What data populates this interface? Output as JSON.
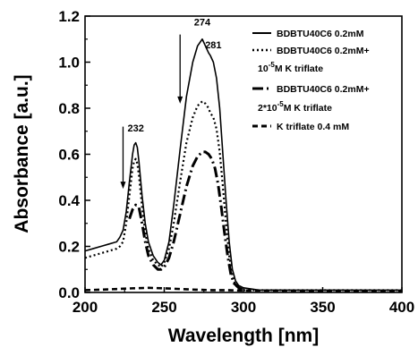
{
  "chart_data": {
    "type": "line",
    "title": "",
    "xlabel": "Wavelength [nm]",
    "ylabel": "Absorbance [a.u.]",
    "xlim": [
      200,
      400
    ],
    "ylim": [
      0.0,
      1.2
    ],
    "x_ticks": [
      "200",
      "250",
      "300",
      "350",
      "400"
    ],
    "y_ticks": [
      "0.0",
      "0.2",
      "0.4",
      "0.6",
      "0.8",
      "1.0",
      "1.2"
    ],
    "grid": false,
    "legend_position": "top-right",
    "annotations": [
      {
        "text": "274",
        "x": 274,
        "y": 1.16
      },
      {
        "text": "281",
        "x": 281,
        "y": 1.06
      },
      {
        "text": "232",
        "x": 232,
        "y": 0.7
      }
    ],
    "arrows": [
      {
        "x": 224,
        "y_from": 0.72,
        "y_to": 0.45
      },
      {
        "x": 260,
        "y_from": 1.12,
        "y_to": 0.82
      }
    ],
    "series": [
      {
        "name": "BDBTU40C6 0.2mM",
        "style": "solid",
        "x": [
          200,
          205,
          210,
          215,
          220,
          222,
          224,
          226,
          228,
          230,
          231,
          232,
          233,
          234,
          236,
          238,
          240,
          243,
          246,
          248,
          250,
          253,
          256,
          260,
          264,
          268,
          271,
          274,
          276,
          278,
          279,
          281,
          283,
          285,
          287,
          289,
          291,
          293,
          295,
          297,
          300,
          310,
          320,
          340,
          360,
          380,
          400
        ],
        "y": [
          0.18,
          0.19,
          0.2,
          0.21,
          0.22,
          0.24,
          0.27,
          0.35,
          0.48,
          0.6,
          0.64,
          0.65,
          0.63,
          0.57,
          0.42,
          0.3,
          0.22,
          0.16,
          0.13,
          0.12,
          0.14,
          0.22,
          0.38,
          0.62,
          0.85,
          1.0,
          1.07,
          1.1,
          1.07,
          1.04,
          1.03,
          1.0,
          0.93,
          0.8,
          0.6,
          0.4,
          0.22,
          0.1,
          0.05,
          0.03,
          0.02,
          0.01,
          0.01,
          0.01,
          0.01,
          0.01,
          0.01
        ]
      },
      {
        "name": "BDBTU40C6 0.2mM+ 10⁻⁵M K triflate",
        "style": "dotted",
        "x": [
          200,
          205,
          210,
          215,
          220,
          222,
          224,
          226,
          228,
          230,
          231,
          232,
          233,
          234,
          236,
          238,
          240,
          243,
          246,
          248,
          250,
          253,
          256,
          260,
          264,
          268,
          271,
          274,
          276,
          278,
          279,
          281,
          283,
          285,
          287,
          289,
          291,
          293,
          295,
          297,
          300,
          310,
          320,
          340,
          360,
          380,
          400
        ],
        "y": [
          0.15,
          0.16,
          0.17,
          0.18,
          0.19,
          0.2,
          0.22,
          0.3,
          0.42,
          0.54,
          0.57,
          0.58,
          0.56,
          0.51,
          0.37,
          0.26,
          0.19,
          0.14,
          0.12,
          0.11,
          0.13,
          0.19,
          0.3,
          0.48,
          0.65,
          0.76,
          0.81,
          0.83,
          0.82,
          0.8,
          0.78,
          0.76,
          0.71,
          0.61,
          0.46,
          0.3,
          0.16,
          0.07,
          0.03,
          0.02,
          0.01,
          0.01,
          0.01,
          0.01,
          0.01,
          0.01,
          0.01
        ]
      },
      {
        "name": "BDBTU40C6 0.2mM+ 2*10⁻⁵M K triflate",
        "style": "dashdot",
        "x": [
          228,
          230,
          232,
          234,
          236,
          238,
          240,
          243,
          246,
          248,
          250,
          253,
          256,
          260,
          264,
          268,
          271,
          274,
          276,
          278,
          280,
          282,
          284,
          286,
          288,
          290,
          292,
          294,
          297,
          300
        ],
        "y": [
          0.32,
          0.36,
          0.38,
          0.37,
          0.3,
          0.22,
          0.16,
          0.12,
          0.1,
          0.1,
          0.11,
          0.15,
          0.22,
          0.34,
          0.46,
          0.55,
          0.59,
          0.61,
          0.61,
          0.6,
          0.58,
          0.54,
          0.47,
          0.37,
          0.26,
          0.16,
          0.08,
          0.04,
          0.02,
          0.01
        ]
      },
      {
        "name": "K triflate 0.4 mM",
        "style": "dashed",
        "x": [
          200,
          210,
          220,
          230,
          240,
          250,
          260,
          270,
          280,
          290,
          300,
          320,
          340,
          360,
          380,
          400
        ],
        "y": [
          0.01,
          0.012,
          0.015,
          0.018,
          0.02,
          0.018,
          0.015,
          0.012,
          0.01,
          0.01,
          0.008,
          0.008,
          0.007,
          0.007,
          0.006,
          0.006
        ]
      }
    ]
  },
  "legend": {
    "line1": "BDBTU40C6 0.2mM",
    "line2a": "BDBTU40C6 0.2mM+",
    "line2b": "10",
    "line2b_sup": "-5",
    "line2b_rest": "M K triflate",
    "line3a": "BDBTU40C6 0.2mM+",
    "line3b": "2*10",
    "line3b_sup": "-5",
    "line3b_rest": "M K triflate",
    "line4": "K triflate 0.4 mM"
  }
}
